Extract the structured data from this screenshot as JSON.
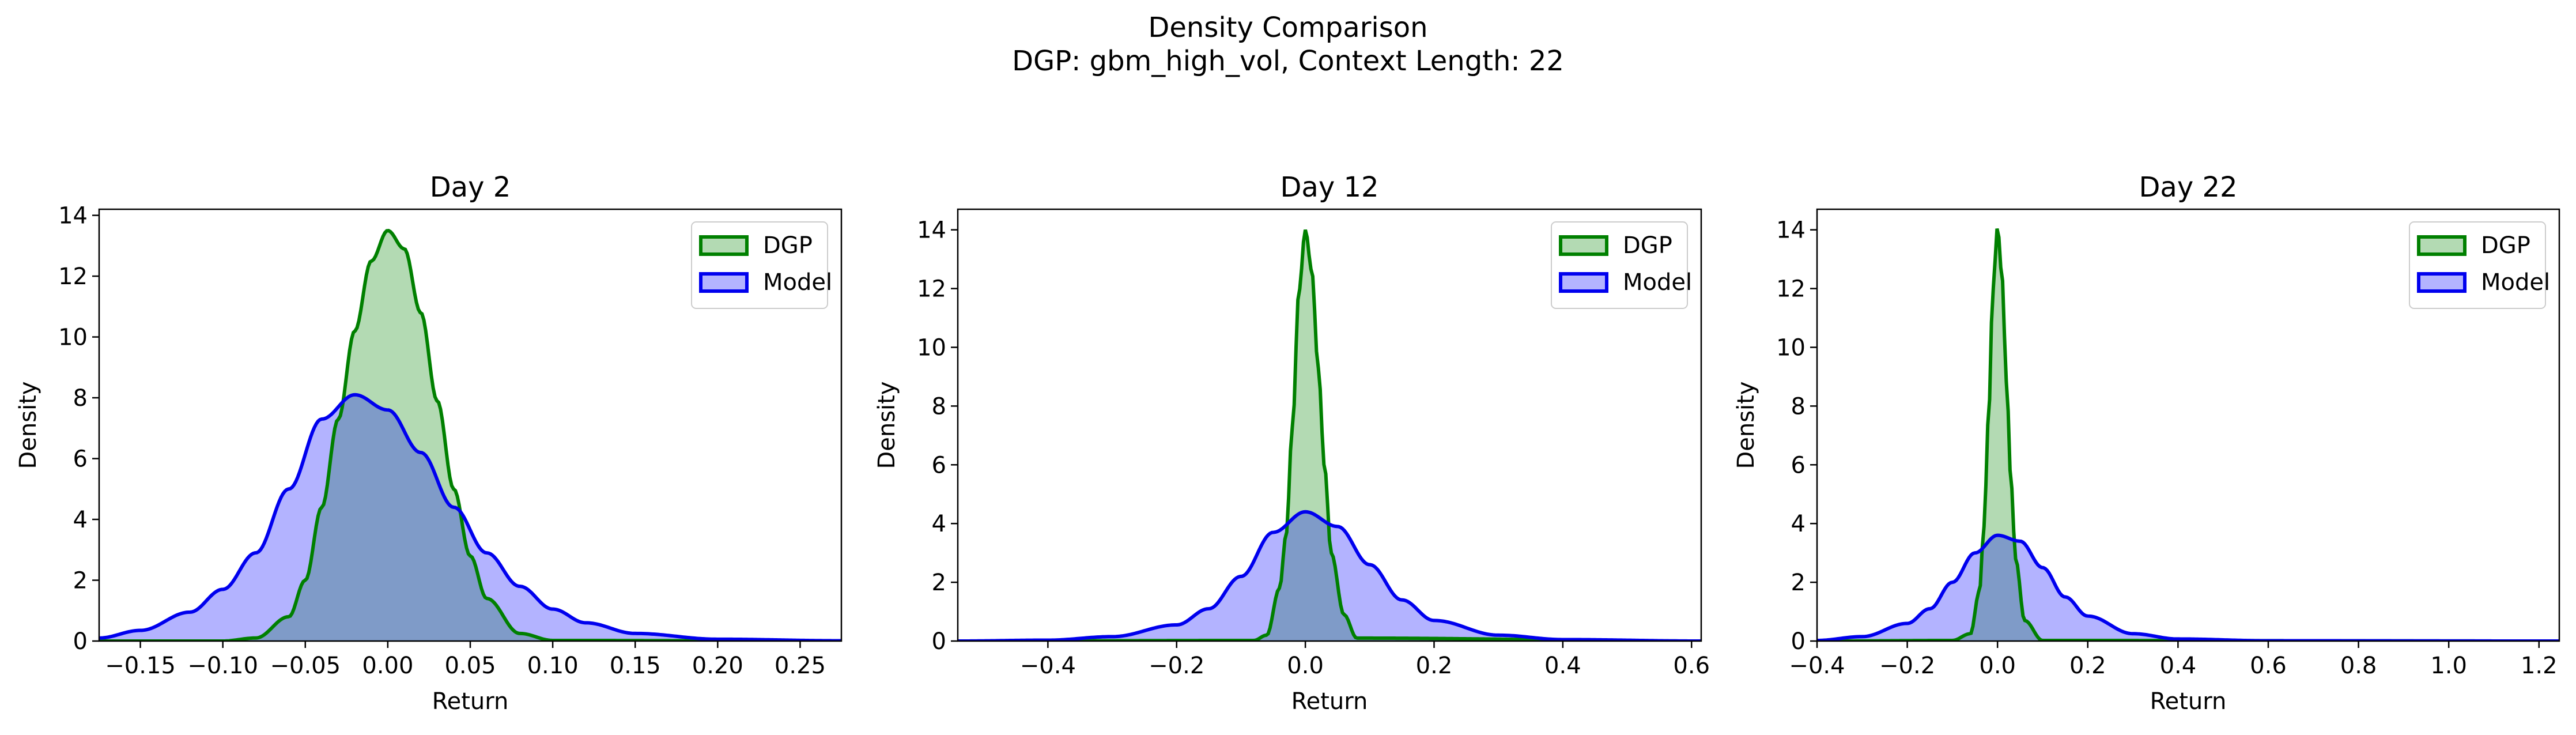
{
  "figure": {
    "title_line1": "Density Comparison",
    "title_line2": "DGP: gbm_high_vol, Context Length: 22"
  },
  "colors": {
    "dgp_line": "#008000",
    "dgp_fill": "#b3dab3",
    "model_line": "#0000ee",
    "model_fill": "#b3b3ff",
    "overlap_fill": "#7f9bc8"
  },
  "chart_data": [
    {
      "type": "area",
      "title": "Day 2",
      "xlabel": "Return",
      "ylabel": "Density",
      "xlim": [
        -0.175,
        0.275
      ],
      "ylim": [
        0,
        14.2
      ],
      "xticks": [
        -0.15,
        -0.1,
        -0.05,
        0.0,
        0.05,
        0.1,
        0.15,
        0.2,
        0.25
      ],
      "xtick_labels": [
        "−0.15",
        "−0.10",
        "−0.05",
        "0.00",
        "0.05",
        "0.10",
        "0.15",
        "0.20",
        "0.25"
      ],
      "yticks": [
        0,
        2,
        4,
        6,
        8,
        10,
        12,
        14
      ],
      "ytick_labels": [
        "0",
        "2",
        "4",
        "6",
        "8",
        "10",
        "12",
        "14"
      ],
      "legend": {
        "placement": "top-right",
        "entries": [
          "DGP",
          "Model"
        ]
      },
      "series": [
        {
          "name": "DGP",
          "x": [
            -0.175,
            -0.1,
            -0.08,
            -0.06,
            -0.05,
            -0.04,
            -0.03,
            -0.02,
            -0.01,
            0.0,
            0.01,
            0.02,
            0.03,
            0.04,
            0.05,
            0.06,
            0.08,
            0.1,
            0.275
          ],
          "y": [
            0,
            0.0,
            0.1,
            0.8,
            2.0,
            4.4,
            7.3,
            10.2,
            12.5,
            13.5,
            12.9,
            10.8,
            7.9,
            5.0,
            2.8,
            1.4,
            0.25,
            0.02,
            0
          ]
        },
        {
          "name": "Model",
          "x": [
            -0.175,
            -0.15,
            -0.12,
            -0.1,
            -0.08,
            -0.06,
            -0.04,
            -0.02,
            0.0,
            0.02,
            0.04,
            0.06,
            0.08,
            0.1,
            0.12,
            0.15,
            0.2,
            0.275
          ],
          "y": [
            0.1,
            0.35,
            0.95,
            1.7,
            2.9,
            5.0,
            7.3,
            8.1,
            7.6,
            6.2,
            4.4,
            2.9,
            1.8,
            1.05,
            0.6,
            0.25,
            0.06,
            0.01
          ]
        }
      ]
    },
    {
      "type": "area",
      "title": "Day 12",
      "xlabel": "Return",
      "ylabel": "Density",
      "xlim": [
        -0.54,
        0.615
      ],
      "ylim": [
        0,
        14.7
      ],
      "xticks": [
        -0.4,
        -0.2,
        0.0,
        0.2,
        0.4,
        0.6
      ],
      "xtick_labels": [
        "−0.4",
        "−0.2",
        "0.0",
        "0.2",
        "0.4",
        "0.6"
      ],
      "yticks": [
        0,
        2,
        4,
        6,
        8,
        10,
        12,
        14
      ],
      "ytick_labels": [
        "0",
        "2",
        "4",
        "6",
        "8",
        "10",
        "12",
        "14"
      ],
      "legend": {
        "placement": "top-right",
        "entries": [
          "DGP",
          "Model"
        ]
      },
      "series": [
        {
          "name": "DGP",
          "x": [
            -0.54,
            -0.08,
            -0.06,
            -0.04,
            -0.03,
            -0.02,
            -0.01,
            0.0,
            0.01,
            0.02,
            0.03,
            0.04,
            0.06,
            0.08,
            0.615
          ],
          "y": [
            0,
            0.02,
            0.2,
            1.8,
            3.6,
            7.3,
            11.9,
            14.0,
            12.6,
            9.3,
            5.9,
            3.0,
            0.9,
            0.1,
            0
          ]
        },
        {
          "name": "Model",
          "x": [
            -0.54,
            -0.4,
            -0.3,
            -0.2,
            -0.15,
            -0.1,
            -0.05,
            0.0,
            0.05,
            0.1,
            0.15,
            0.2,
            0.3,
            0.4,
            0.615
          ],
          "y": [
            0.0,
            0.03,
            0.15,
            0.55,
            1.1,
            2.2,
            3.7,
            4.4,
            3.9,
            2.6,
            1.4,
            0.7,
            0.2,
            0.05,
            0.0
          ]
        }
      ]
    },
    {
      "type": "area",
      "title": "Day 22",
      "xlabel": "Return",
      "ylabel": "Density",
      "xlim": [
        -0.4,
        1.245
      ],
      "ylim": [
        0,
        14.7
      ],
      "xticks": [
        -0.4,
        -0.2,
        0.0,
        0.2,
        0.4,
        0.6,
        0.8,
        1.0,
        1.2
      ],
      "xtick_labels": [
        "−0.4",
        "−0.2",
        "0.0",
        "0.2",
        "0.4",
        "0.6",
        "0.8",
        "1.0",
        "1.2"
      ],
      "yticks": [
        0,
        2,
        4,
        6,
        8,
        10,
        12,
        14
      ],
      "ytick_labels": [
        "0",
        "2",
        "4",
        "6",
        "8",
        "10",
        "12",
        "14"
      ],
      "legend": {
        "placement": "top-right",
        "entries": [
          "DGP",
          "Model"
        ]
      },
      "series": [
        {
          "name": "DGP",
          "x": [
            -0.4,
            -0.1,
            -0.06,
            -0.04,
            -0.03,
            -0.02,
            -0.01,
            0.0,
            0.01,
            0.02,
            0.03,
            0.04,
            0.06,
            0.1,
            1.245
          ],
          "y": [
            0,
            0.02,
            0.25,
            1.7,
            3.9,
            7.6,
            12.0,
            14.1,
            12.4,
            8.8,
            5.4,
            2.8,
            0.7,
            0.02,
            0
          ]
        },
        {
          "name": "Model",
          "x": [
            -0.4,
            -0.3,
            -0.2,
            -0.15,
            -0.1,
            -0.05,
            0.0,
            0.05,
            0.1,
            0.15,
            0.2,
            0.3,
            0.4,
            0.6,
            1.245
          ],
          "y": [
            0.02,
            0.15,
            0.6,
            1.1,
            2.0,
            3.0,
            3.6,
            3.4,
            2.5,
            1.5,
            0.85,
            0.25,
            0.07,
            0.01,
            0.0
          ]
        }
      ]
    }
  ]
}
